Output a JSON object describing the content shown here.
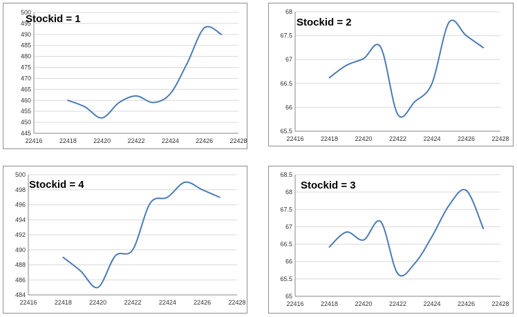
{
  "line_color": "#4a7ab5",
  "chart_data": [
    {
      "type": "line",
      "title": "Stockid = 1",
      "xlabel": "",
      "ylabel": "",
      "xlim": [
        22416,
        22428
      ],
      "ylim": [
        445,
        500
      ],
      "x_ticks": [
        "22416",
        "22418",
        "22420",
        "22422",
        "22424",
        "22426",
        "22428"
      ],
      "y_ticks": [
        "445",
        "450",
        "455",
        "460",
        "465",
        "470",
        "475",
        "480",
        "485",
        "490",
        "495",
        "500"
      ],
      "grid": true,
      "legend": "none",
      "series": [
        {
          "x": [
            22418,
            22419,
            22420,
            22421,
            22422,
            22423,
            22424,
            22425,
            22426,
            22427
          ],
          "y": [
            460,
            457,
            452,
            459,
            462,
            459,
            463,
            477,
            493,
            490
          ]
        }
      ]
    },
    {
      "type": "line",
      "title": "Stockid = 2",
      "xlabel": "",
      "ylabel": "",
      "xlim": [
        22416,
        22428
      ],
      "ylim": [
        65.5,
        68
      ],
      "x_ticks": [
        "22416",
        "22418",
        "22420",
        "22422",
        "22424",
        "22426",
        "22428"
      ],
      "y_ticks": [
        "65.5",
        "66",
        "66.5",
        "67",
        "67.5",
        "68"
      ],
      "grid": true,
      "legend": "none",
      "series": [
        {
          "x": [
            22418,
            22419,
            22420,
            22421,
            22422,
            22423,
            22424,
            22425,
            22426,
            22427
          ],
          "y": [
            66.62,
            66.88,
            67.02,
            67.26,
            65.85,
            66.12,
            66.5,
            67.78,
            67.5,
            67.25
          ]
        }
      ]
    },
    {
      "type": "line",
      "title": "Stockid = 4",
      "xlabel": "",
      "ylabel": "",
      "xlim": [
        22416,
        22428
      ],
      "ylim": [
        484,
        500
      ],
      "x_ticks": [
        "22416",
        "22418",
        "22420",
        "22422",
        "22424",
        "22426",
        "22428"
      ],
      "y_ticks": [
        "484",
        "486",
        "488",
        "490",
        "492",
        "494",
        "496",
        "498",
        "500"
      ],
      "grid": true,
      "legend": "none",
      "series": [
        {
          "x": [
            22418,
            22419,
            22420,
            22421,
            22422,
            22423,
            22424,
            22425,
            22426,
            22427
          ],
          "y": [
            489,
            487.2,
            485,
            489.2,
            490,
            496.2,
            497,
            499,
            498,
            497
          ]
        }
      ]
    },
    {
      "type": "line",
      "title": "Stockid = 3",
      "xlabel": "",
      "ylabel": "",
      "xlim": [
        22416,
        22428
      ],
      "ylim": [
        65,
        68.5
      ],
      "x_ticks": [
        "22416",
        "22418",
        "22420",
        "22422",
        "22424",
        "22426",
        "22428"
      ],
      "y_ticks": [
        "65",
        "65.5",
        "66",
        "66.5",
        "67",
        "67.5",
        "68",
        "68.5"
      ],
      "grid": true,
      "legend": "none",
      "series": [
        {
          "x": [
            22418,
            22419,
            22420,
            22421,
            22422,
            22423,
            22424,
            22425,
            22426,
            22427
          ],
          "y": [
            66.42,
            66.85,
            66.62,
            67.15,
            65.65,
            65.95,
            66.72,
            67.62,
            68.05,
            66.95
          ]
        }
      ]
    }
  ]
}
